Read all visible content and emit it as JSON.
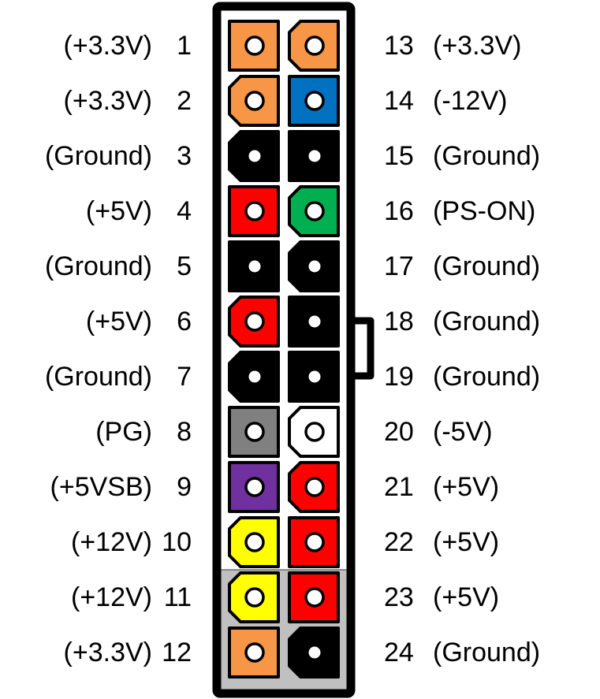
{
  "colors": {
    "orange": "#f79646",
    "blue": "#0070c0",
    "black": "#000000",
    "red": "#ff0000",
    "green": "#00b050",
    "gray": "#808080",
    "white": "#ffffff",
    "purple": "#7030a0",
    "yellow": "#ffff00",
    "housing_lower": "#c0c0c0"
  },
  "left_pins": [
    {
      "num": "1",
      "signal": "(+3.3V)",
      "color": "orange",
      "chamfer": false
    },
    {
      "num": "2",
      "signal": "(+3.3V)",
      "color": "orange",
      "chamfer": true
    },
    {
      "num": "3",
      "signal": "(Ground)",
      "color": "black",
      "chamfer": true
    },
    {
      "num": "4",
      "signal": "(+5V)",
      "color": "red",
      "chamfer": false
    },
    {
      "num": "5",
      "signal": "(Ground)",
      "color": "black",
      "chamfer": false
    },
    {
      "num": "6",
      "signal": "(+5V)",
      "color": "red",
      "chamfer": true
    },
    {
      "num": "7",
      "signal": "(Ground)",
      "color": "black",
      "chamfer": true
    },
    {
      "num": "8",
      "signal": "(PG)",
      "color": "gray",
      "chamfer": false
    },
    {
      "num": "9",
      "signal": "(+5VSB)",
      "color": "purple",
      "chamfer": false
    },
    {
      "num": "10",
      "signal": "(+12V)",
      "color": "yellow",
      "chamfer": true
    },
    {
      "num": "11",
      "signal": "(+12V)",
      "color": "yellow",
      "chamfer": true
    },
    {
      "num": "12",
      "signal": "(+3.3V)",
      "color": "orange",
      "chamfer": false
    }
  ],
  "right_pins": [
    {
      "num": "13",
      "signal": "(+3.3V)",
      "color": "orange",
      "chamfer": true
    },
    {
      "num": "14",
      "signal": "(-12V)",
      "color": "blue",
      "chamfer": false
    },
    {
      "num": "15",
      "signal": "(Ground)",
      "color": "black",
      "chamfer": false
    },
    {
      "num": "16",
      "signal": "(PS-ON)",
      "color": "green",
      "chamfer": true
    },
    {
      "num": "17",
      "signal": "(Ground)",
      "color": "black",
      "chamfer": true
    },
    {
      "num": "18",
      "signal": "(Ground)",
      "color": "black",
      "chamfer": false
    },
    {
      "num": "19",
      "signal": "(Ground)",
      "color": "black",
      "chamfer": false
    },
    {
      "num": "20",
      "signal": "(-5V)",
      "color": "white",
      "chamfer": true
    },
    {
      "num": "21",
      "signal": "(+5V)",
      "color": "red",
      "chamfer": true
    },
    {
      "num": "22",
      "signal": "(+5V)",
      "color": "red",
      "chamfer": false
    },
    {
      "num": "23",
      "signal": "(+5V)",
      "color": "red",
      "chamfer": false
    },
    {
      "num": "24",
      "signal": "(Ground)",
      "color": "black",
      "chamfer": true
    }
  ]
}
